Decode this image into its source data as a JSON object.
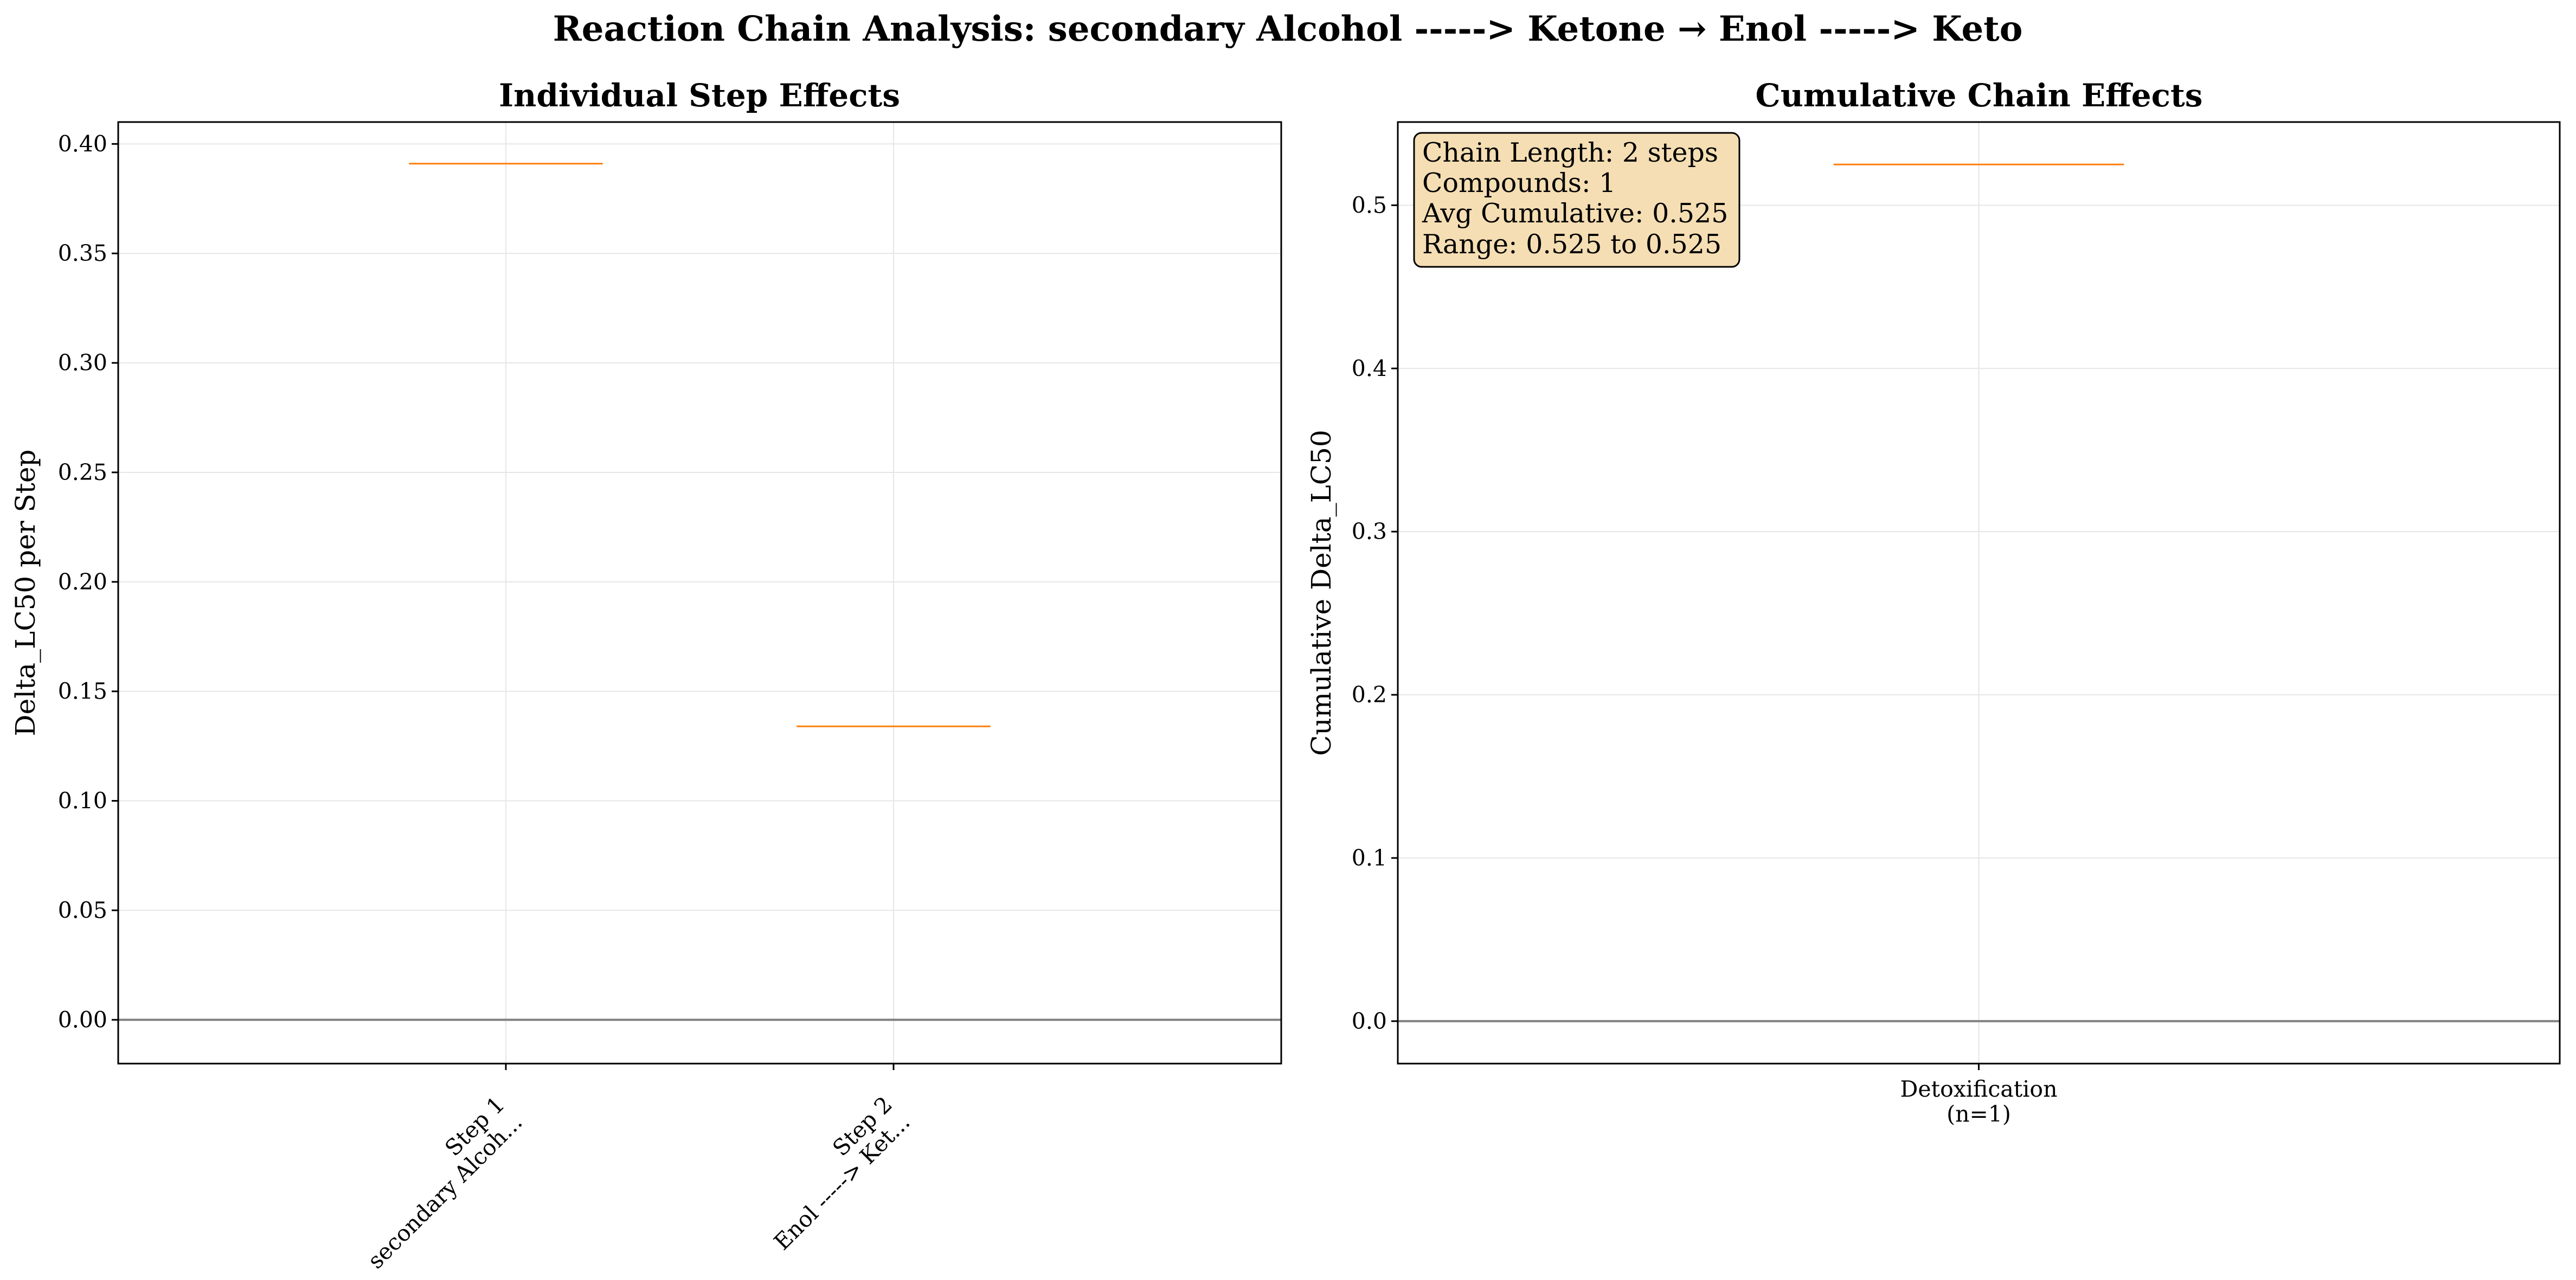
{
  "suptitle": "Reaction Chain Analysis: secondary Alcohol -----> Ketone → Enol -----> Keto",
  "colors": {
    "median": "#ff7f0e",
    "zero_line": "#808080",
    "grid": "#e6e6e6",
    "stats_box": "#f5deb3"
  },
  "chart_data": [
    {
      "type": "box",
      "title": "Individual Step Effects",
      "xlabel": "",
      "ylabel": "Delta_LC50 per Step",
      "ylim": [
        -0.02,
        0.41
      ],
      "yticks": [
        "0.00",
        "0.05",
        "0.10",
        "0.15",
        "0.20",
        "0.25",
        "0.30",
        "0.35",
        "0.40"
      ],
      "categories": [
        {
          "line1": "Step 1",
          "line2": "secondary Alcoh..."
        },
        {
          "line1": "Step 2",
          "line2": "Enol -----> Ket..."
        }
      ],
      "values": [
        0.391,
        0.134
      ],
      "reference_line": 0,
      "grid": true
    },
    {
      "type": "box",
      "title": "Cumulative Chain Effects",
      "xlabel": "",
      "ylabel": "Cumulative Delta_LC50",
      "ylim": [
        -0.026,
        0.551
      ],
      "yticks": [
        "0.0",
        "0.1",
        "0.2",
        "0.3",
        "0.4",
        "0.5"
      ],
      "categories": [
        {
          "line1": "Detoxification",
          "line2": "(n=1)"
        }
      ],
      "values": [
        0.525
      ],
      "reference_line": 0,
      "grid": true,
      "stats_box": [
        "Chain Length: 2 steps",
        "Compounds: 1",
        "Avg Cumulative: 0.525",
        "Range: 0.525 to 0.525"
      ]
    }
  ]
}
